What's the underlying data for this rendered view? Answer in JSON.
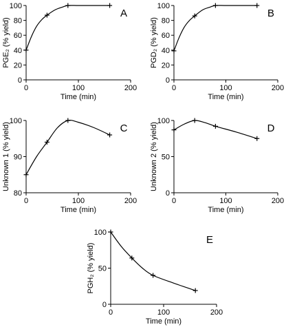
{
  "chart_data": [
    {
      "type": "line",
      "panel": "A",
      "xlabel": "Time (min)",
      "ylabel": "PGE₂ (% yield)",
      "xlim": [
        0,
        200
      ],
      "ylim": [
        0,
        100
      ],
      "xticks": [
        0,
        100,
        200
      ],
      "yticks": [
        0,
        20,
        40,
        60,
        80,
        100
      ],
      "points": {
        "x": [
          0,
          40,
          80,
          160
        ],
        "y": [
          40,
          87,
          100,
          100
        ]
      },
      "curve": {
        "x": [
          0,
          10,
          20,
          30,
          40,
          55,
          70,
          80,
          100,
          130,
          160
        ],
        "y": [
          40,
          58,
          72,
          81,
          87,
          94,
          98,
          100,
          100,
          100,
          100
        ]
      }
    },
    {
      "type": "line",
      "panel": "B",
      "xlabel": "Time (min)",
      "ylabel": "PGD₂ (% yield)",
      "xlim": [
        0,
        200
      ],
      "ylim": [
        0,
        100
      ],
      "xticks": [
        0,
        100,
        200
      ],
      "yticks": [
        0,
        20,
        40,
        60,
        80,
        100
      ],
      "points": {
        "x": [
          0,
          40,
          80,
          160
        ],
        "y": [
          39,
          86,
          100,
          100
        ]
      },
      "curve": {
        "x": [
          0,
          10,
          20,
          30,
          40,
          55,
          70,
          80,
          100,
          130,
          160
        ],
        "y": [
          39,
          57,
          71,
          80,
          86,
          94,
          98,
          100,
          100,
          100,
          100
        ]
      }
    },
    {
      "type": "line",
      "panel": "C",
      "xlabel": "Time (min)",
      "ylabel": "Unknown 1 (% yield)",
      "xlim": [
        0,
        200
      ],
      "ylim": [
        80,
        100
      ],
      "xticks": [
        0,
        100,
        200
      ],
      "yticks": [
        80,
        90,
        100
      ],
      "points": {
        "x": [
          0,
          40,
          80,
          160
        ],
        "y": [
          85,
          94,
          100,
          96
        ]
      },
      "curve": {
        "x": [
          0,
          20,
          40,
          60,
          80,
          100,
          130,
          160
        ],
        "y": [
          85,
          90,
          94,
          98,
          100,
          99.5,
          98,
          96
        ]
      }
    },
    {
      "type": "line",
      "panel": "D",
      "xlabel": "Time (min)",
      "ylabel": "Unknown 2 (% yield)",
      "xlim": [
        0,
        200
      ],
      "ylim": [
        0,
        100
      ],
      "xticks": [
        0,
        100,
        200
      ],
      "yticks": [
        0,
        50,
        100
      ],
      "points": {
        "x": [
          0,
          40,
          80,
          160
        ],
        "y": [
          87,
          100,
          92,
          75
        ]
      },
      "curve": {
        "x": [
          0,
          20,
          40,
          60,
          80,
          120,
          160
        ],
        "y": [
          87,
          95,
          100,
          97,
          92,
          84,
          75
        ]
      }
    },
    {
      "type": "line",
      "panel": "E",
      "xlabel": "Time (min)",
      "ylabel": "PGH₂ (% yield)",
      "xlim": [
        0,
        200
      ],
      "ylim": [
        0,
        100
      ],
      "xticks": [
        0,
        100,
        200
      ],
      "yticks": [
        0,
        50,
        100
      ],
      "points": {
        "x": [
          0,
          40,
          80,
          160
        ],
        "y": [
          100,
          64,
          40,
          19
        ]
      },
      "curve": {
        "x": [
          0,
          20,
          40,
          60,
          80,
          120,
          160
        ],
        "y": [
          100,
          80,
          64,
          50,
          40,
          29,
          19
        ]
      }
    }
  ]
}
